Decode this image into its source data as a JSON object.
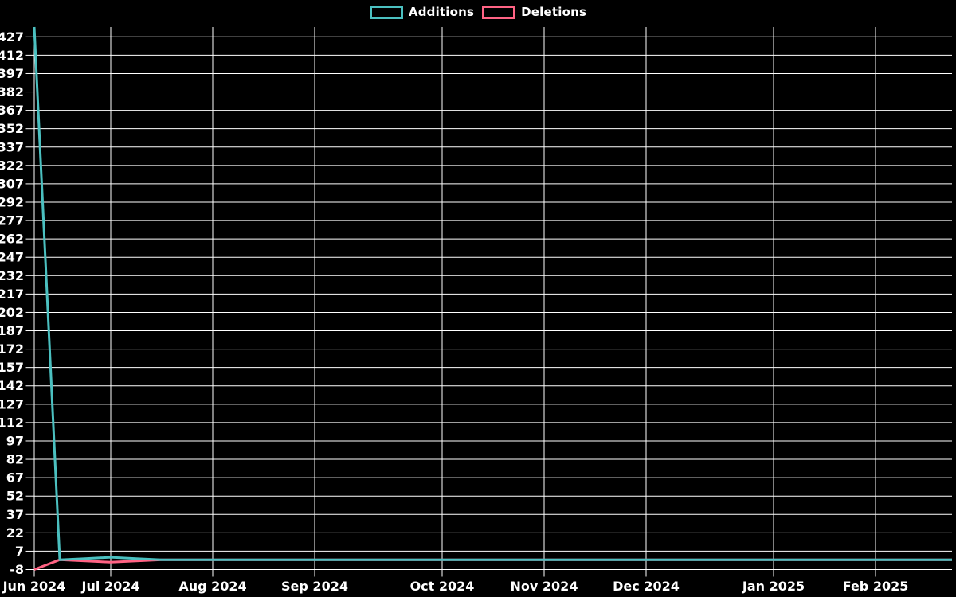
{
  "chart_data": {
    "type": "line",
    "title": "",
    "xlabel": "",
    "ylabel": "",
    "background": "#000000",
    "grid_color": "#ffffff",
    "text_color": "#ffffff",
    "grid": true,
    "legend_position": "top-center",
    "legend": [
      {
        "label": "Additions",
        "color": "#4bc0c0"
      },
      {
        "label": "Deletions",
        "color": "#ff6384"
      }
    ],
    "y_axis": {
      "min": -8,
      "max": 435,
      "tick_step": 15,
      "tick_labels": [
        "427",
        "412",
        "397",
        "382",
        "367",
        "352",
        "337",
        "322",
        "307",
        "292",
        "277",
        "262",
        "247",
        "232",
        "217",
        "202",
        "187",
        "172",
        "157",
        "142",
        "127",
        "112",
        "97",
        "82",
        "67",
        "52",
        "37",
        "22",
        "7",
        "-8"
      ]
    },
    "x_axis": {
      "unit": "weeks",
      "weeks_total": 36,
      "ticks": [
        {
          "label": "Jun 2024",
          "week": 0
        },
        {
          "label": "Jul 2024",
          "week": 3
        },
        {
          "label": "Aug 2024",
          "week": 7
        },
        {
          "label": "Sep 2024",
          "week": 11
        },
        {
          "label": "Oct 2024",
          "week": 16
        },
        {
          "label": "Nov 2024",
          "week": 20
        },
        {
          "label": "Dec 2024",
          "week": 24
        },
        {
          "label": "Jan 2025",
          "week": 29
        },
        {
          "label": "Feb 2025",
          "week": 33
        }
      ]
    },
    "series": [
      {
        "name": "Additions",
        "color": "#4bc0c0",
        "values": [
          435,
          0,
          1,
          2,
          1,
          0,
          0,
          0,
          0,
          0,
          0,
          0,
          0,
          0,
          0,
          0,
          0,
          0,
          0,
          0,
          0,
          0,
          0,
          0,
          0,
          0,
          0,
          0,
          0,
          0,
          0,
          0,
          0,
          0,
          0,
          0,
          0
        ]
      },
      {
        "name": "Deletions",
        "color": "#ff6384",
        "values": [
          -8,
          0,
          -1,
          -2,
          -1,
          0,
          0,
          0,
          0,
          0,
          0,
          0,
          0,
          0,
          0,
          0,
          0,
          0,
          0,
          0,
          0,
          0,
          0,
          0,
          0,
          0,
          0,
          0,
          0,
          0,
          0,
          0,
          0,
          0,
          0,
          0,
          0
        ]
      }
    ]
  }
}
